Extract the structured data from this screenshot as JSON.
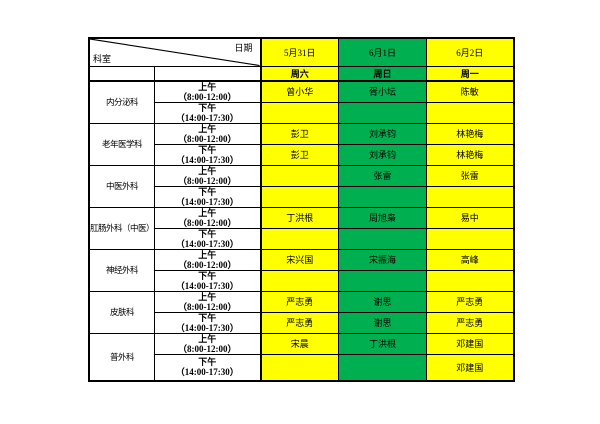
{
  "header": {
    "diagonal": {
      "top_right": "日期",
      "bottom_left": "科室"
    },
    "dates": [
      {
        "label": "5月31日",
        "color": "yellow"
      },
      {
        "label": "6月1日",
        "color": "green"
      },
      {
        "label": "6月2日",
        "color": "yellow"
      }
    ],
    "days": [
      "周六",
      "周日",
      "周一"
    ]
  },
  "time_slots": {
    "am": {
      "line1": "上午",
      "line2": "（8:00-12:00）"
    },
    "pm": {
      "line1": "下午",
      "line2": "（14:00-17:30）"
    }
  },
  "column_colors": [
    "yellow",
    "green",
    "yellow"
  ],
  "departments": [
    {
      "name": "内分泌科",
      "am": [
        "曾小华",
        "胥小坛",
        "陈敏"
      ],
      "pm": [
        "",
        "",
        ""
      ]
    },
    {
      "name": "老年医学科",
      "am": [
        "彭卫",
        "刘承钧",
        "林艳梅"
      ],
      "pm": [
        "彭卫",
        "刘承钧",
        "林艳梅"
      ]
    },
    {
      "name": "中医外科",
      "am": [
        "",
        "张雷",
        "张雷"
      ],
      "pm": [
        "",
        "",
        ""
      ]
    },
    {
      "name": "肛肠外科（中医）",
      "am": [
        "丁洪根",
        "周旭枭",
        "易中"
      ],
      "pm": [
        "",
        "",
        ""
      ]
    },
    {
      "name": "神经外科",
      "am": [
        "宋兴国",
        "宋振海",
        "高峰"
      ],
      "pm": [
        "",
        "",
        ""
      ]
    },
    {
      "name": "皮肤科",
      "am": [
        "严志勇",
        "谢思",
        "严志勇"
      ],
      "pm": [
        "严志勇",
        "谢思",
        "严志勇"
      ]
    },
    {
      "name": "普外科",
      "am": [
        "宋晨",
        "丁洪根",
        "邓建国"
      ],
      "pm": [
        "",
        "",
        "邓建国"
      ]
    }
  ],
  "colors": {
    "yellow": "#FFFF00",
    "green": "#00B050",
    "border": "#000000",
    "text": "#000000"
  }
}
